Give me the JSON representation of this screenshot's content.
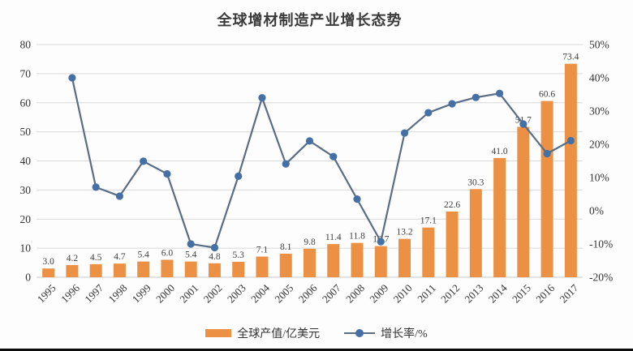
{
  "chart_data": {
    "type": "combo",
    "title": "全球增材制造产业增长态势",
    "categories": [
      "1995",
      "1996",
      "1997",
      "1998",
      "1999",
      "2000",
      "2001",
      "2002",
      "2003",
      "2004",
      "2005",
      "2006",
      "2007",
      "2008",
      "2009",
      "2010",
      "2011",
      "2012",
      "2013",
      "2014",
      "2015",
      "2016",
      "2017"
    ],
    "series": [
      {
        "name": "全球产值/亿美元",
        "type": "bar",
        "axis": "left",
        "color": "#EC9144",
        "values": [
          3.0,
          4.2,
          4.5,
          4.7,
          5.4,
          6.0,
          5.4,
          4.8,
          5.3,
          7.1,
          8.1,
          9.8,
          11.4,
          11.8,
          10.7,
          13.2,
          17.1,
          22.6,
          30.3,
          41.0,
          51.7,
          60.6,
          73.4
        ],
        "data_labels": [
          "3.0",
          "4.2",
          "4.5",
          "4.7",
          "5.4",
          "6.0",
          "5.4",
          "4.8",
          "5.3",
          "7.1",
          "8.1",
          "9.8",
          "11.4",
          "11.8",
          "10.7",
          "13.2",
          "17.1",
          "22.6",
          "30.3",
          "41.0",
          "51.7",
          "60.6",
          "73.4"
        ]
      },
      {
        "name": "增长率/%",
        "type": "line",
        "axis": "right",
        "color_line": "#5A6D84",
        "color_marker": "#4470A6",
        "values": [
          null,
          40.0,
          7.1,
          4.4,
          14.9,
          11.1,
          -10.0,
          -11.1,
          10.4,
          34.0,
          14.1,
          21.0,
          16.3,
          3.5,
          -9.3,
          23.4,
          29.5,
          32.2,
          34.1,
          35.3,
          26.1,
          17.2,
          21.1
        ]
      }
    ],
    "left_axis": {
      "min": 0,
      "max": 80,
      "step": 10,
      "tick_labels": [
        "0",
        "10",
        "20",
        "30",
        "40",
        "50",
        "60",
        "70",
        "80"
      ]
    },
    "right_axis": {
      "min": -20,
      "max": 50,
      "step": 10,
      "tick_labels": [
        "-20%",
        "-10%",
        "0%",
        "10%",
        "20%",
        "30%",
        "40%",
        "50%"
      ]
    },
    "grid": true,
    "legend_position": "bottom",
    "colors": {
      "grid": "#D9D9D9",
      "axis_line": "#C9C9C9",
      "tick_text": "#333333",
      "data_label_text": "#404040",
      "title_text": "#3A3A3A"
    }
  },
  "legend": {
    "bar_label": "全球产值/亿美元",
    "line_label": "增长率/%"
  }
}
